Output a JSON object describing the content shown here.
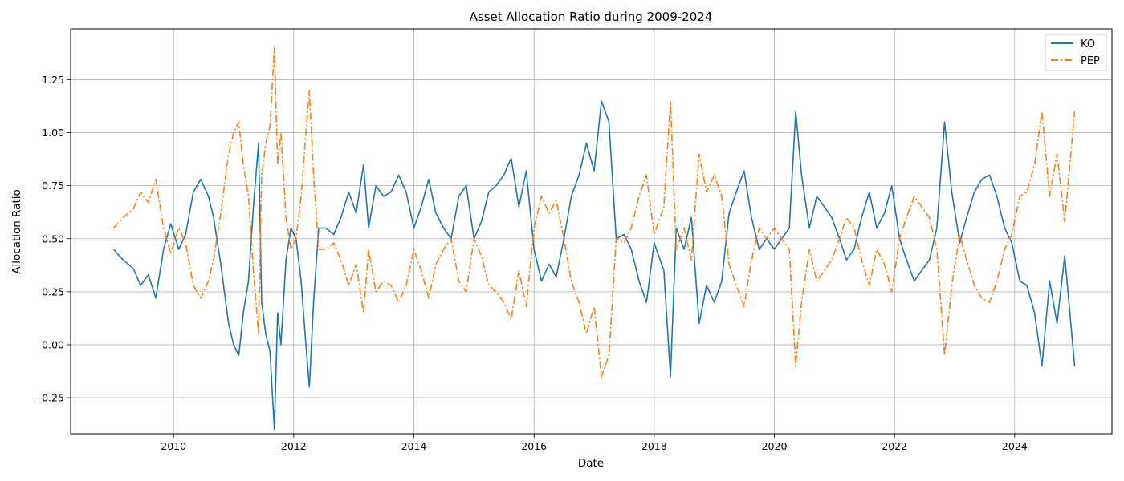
{
  "chart_data": {
    "type": "line",
    "title": "Asset Allocation Ratio during 2009-2024",
    "xlabel": "Date",
    "ylabel": "Allocation Ratio",
    "xlim": [
      "2008-04-15",
      "2025-08-15"
    ],
    "ylim": [
      -0.42,
      1.49
    ],
    "x_ticks": [
      "2010",
      "2012",
      "2014",
      "2016",
      "2018",
      "2020",
      "2022",
      "2024"
    ],
    "y_ticks": [
      "−0.25",
      "0.00",
      "0.25",
      "0.50",
      "0.75",
      "1.00",
      "1.25"
    ],
    "y_tick_values": [
      -0.25,
      0,
      0.25,
      0.5,
      0.75,
      1.0,
      1.25
    ],
    "grid": true,
    "legend_position": "top-right",
    "series": [
      {
        "name": "KO",
        "color": "#1f77b4",
        "style": "solid",
        "x": [
          "2009-01-01",
          "2009-03-01",
          "2009-05-01",
          "2009-06-15",
          "2009-08-01",
          "2009-09-15",
          "2009-11-01",
          "2009-12-15",
          "2010-02-01",
          "2010-03-15",
          "2010-05-01",
          "2010-06-15",
          "2010-08-01",
          "2010-09-01",
          "2010-10-15",
          "2010-12-01",
          "2011-01-01",
          "2011-02-01",
          "2011-03-01",
          "2011-04-01",
          "2011-05-01",
          "2011-06-01",
          "2011-06-20",
          "2011-07-15",
          "2011-08-10",
          "2011-09-05",
          "2011-09-25",
          "2011-10-15",
          "2011-11-15",
          "2011-12-15",
          "2012-01-15",
          "2012-02-15",
          "2012-03-10",
          "2012-04-05",
          "2012-05-01",
          "2012-06-01",
          "2012-07-15",
          "2012-09-01",
          "2012-10-15",
          "2012-12-01",
          "2013-01-15",
          "2013-03-01",
          "2013-04-01",
          "2013-05-15",
          "2013-07-01",
          "2013-08-15",
          "2013-10-01",
          "2013-11-15",
          "2014-01-01",
          "2014-02-15",
          "2014-04-01",
          "2014-05-15",
          "2014-07-01",
          "2014-08-15",
          "2014-10-01",
          "2014-11-15",
          "2015-01-01",
          "2015-02-15",
          "2015-04-01",
          "2015-05-15",
          "2015-07-01",
          "2015-08-15",
          "2015-10-01",
          "2015-11-15",
          "2016-01-01",
          "2016-02-15",
          "2016-04-01",
          "2016-05-15",
          "2016-07-01",
          "2016-08-15",
          "2016-10-01",
          "2016-11-15",
          "2017-01-01",
          "2017-02-15",
          "2017-04-01",
          "2017-05-15",
          "2017-07-01",
          "2017-08-15",
          "2017-10-01",
          "2017-11-15",
          "2018-01-01",
          "2018-03-01",
          "2018-04-10",
          "2018-05-15",
          "2018-07-01",
          "2018-08-15",
          "2018-10-01",
          "2018-11-15",
          "2019-01-01",
          "2019-02-15",
          "2019-04-01",
          "2019-05-15",
          "2019-07-01",
          "2019-08-15",
          "2019-10-01",
          "2019-11-15",
          "2020-01-01",
          "2020-02-15",
          "2020-04-01",
          "2020-05-10",
          "2020-06-15",
          "2020-08-01",
          "2020-09-15",
          "2020-11-01",
          "2020-12-15",
          "2021-02-01",
          "2021-03-15",
          "2021-05-01",
          "2021-06-15",
          "2021-08-01",
          "2021-09-15",
          "2021-11-01",
          "2021-12-15",
          "2022-02-01",
          "2022-03-15",
          "2022-05-01",
          "2022-06-15",
          "2022-08-01",
          "2022-09-15",
          "2022-11-01",
          "2022-12-15",
          "2023-02-01",
          "2023-03-15",
          "2023-05-01",
          "2023-06-15",
          "2023-08-01",
          "2023-09-15",
          "2023-11-01",
          "2023-12-15",
          "2024-02-01",
          "2024-03-15",
          "2024-05-01",
          "2024-06-15",
          "2024-08-01",
          "2024-09-15",
          "2024-11-01",
          "2024-12-31"
        ],
        "y": [
          0.45,
          0.4,
          0.36,
          0.28,
          0.33,
          0.22,
          0.45,
          0.57,
          0.45,
          0.52,
          0.72,
          0.78,
          0.7,
          0.6,
          0.38,
          0.1,
          0.0,
          -0.05,
          0.15,
          0.3,
          0.65,
          0.95,
          0.2,
          0.05,
          -0.03,
          -0.4,
          0.15,
          0.0,
          0.4,
          0.55,
          0.5,
          0.3,
          0.05,
          -0.2,
          0.2,
          0.55,
          0.55,
          0.52,
          0.6,
          0.72,
          0.62,
          0.85,
          0.55,
          0.75,
          0.7,
          0.72,
          0.8,
          0.72,
          0.55,
          0.65,
          0.78,
          0.62,
          0.55,
          0.5,
          0.7,
          0.75,
          0.5,
          0.58,
          0.72,
          0.75,
          0.8,
          0.88,
          0.65,
          0.82,
          0.45,
          0.3,
          0.38,
          0.32,
          0.5,
          0.7,
          0.8,
          0.95,
          0.82,
          1.15,
          1.05,
          0.5,
          0.52,
          0.45,
          0.3,
          0.2,
          0.48,
          0.35,
          -0.15,
          0.55,
          0.45,
          0.6,
          0.1,
          0.28,
          0.2,
          0.3,
          0.62,
          0.72,
          0.82,
          0.6,
          0.45,
          0.5,
          0.45,
          0.5,
          0.55,
          1.1,
          0.8,
          0.55,
          0.7,
          0.65,
          0.6,
          0.5,
          0.4,
          0.45,
          0.6,
          0.72,
          0.55,
          0.62,
          0.75,
          0.5,
          0.4,
          0.3,
          0.35,
          0.4,
          0.55,
          1.05,
          0.72,
          0.48,
          0.6,
          0.72,
          0.78,
          0.8,
          0.7,
          0.55,
          0.48,
          0.3,
          0.28,
          0.15,
          -0.1,
          0.3,
          0.1,
          0.42,
          -0.1
        ]
      },
      {
        "name": "PEP",
        "color": "#ff7f0e",
        "style": "dashdot",
        "x": [
          "2009-01-01",
          "2009-03-01",
          "2009-05-01",
          "2009-06-15",
          "2009-08-01",
          "2009-09-15",
          "2009-11-01",
          "2009-12-15",
          "2010-02-01",
          "2010-03-15",
          "2010-05-01",
          "2010-06-15",
          "2010-08-01",
          "2010-09-01",
          "2010-10-15",
          "2010-12-01",
          "2011-01-01",
          "2011-02-01",
          "2011-03-01",
          "2011-04-01",
          "2011-05-01",
          "2011-06-01",
          "2011-06-20",
          "2011-07-15",
          "2011-08-10",
          "2011-09-05",
          "2011-09-25",
          "2011-10-15",
          "2011-11-15",
          "2011-12-15",
          "2012-01-15",
          "2012-02-15",
          "2012-03-10",
          "2012-04-05",
          "2012-05-01",
          "2012-06-01",
          "2012-07-15",
          "2012-09-01",
          "2012-10-15",
          "2012-12-01",
          "2013-01-15",
          "2013-03-01",
          "2013-04-01",
          "2013-05-15",
          "2013-07-01",
          "2013-08-15",
          "2013-10-01",
          "2013-11-15",
          "2014-01-01",
          "2014-02-15",
          "2014-04-01",
          "2014-05-15",
          "2014-07-01",
          "2014-08-15",
          "2014-10-01",
          "2014-11-15",
          "2015-01-01",
          "2015-02-15",
          "2015-04-01",
          "2015-05-15",
          "2015-07-01",
          "2015-08-15",
          "2015-10-01",
          "2015-11-15",
          "2016-01-01",
          "2016-02-15",
          "2016-04-01",
          "2016-05-15",
          "2016-07-01",
          "2016-08-15",
          "2016-10-01",
          "2016-11-15",
          "2017-01-01",
          "2017-02-15",
          "2017-04-01",
          "2017-05-15",
          "2017-07-01",
          "2017-08-15",
          "2017-10-01",
          "2017-11-15",
          "2018-01-01",
          "2018-03-01",
          "2018-04-10",
          "2018-05-15",
          "2018-07-01",
          "2018-08-15",
          "2018-10-01",
          "2018-11-15",
          "2019-01-01",
          "2019-02-15",
          "2019-04-01",
          "2019-05-15",
          "2019-07-01",
          "2019-08-15",
          "2019-10-01",
          "2019-11-15",
          "2020-01-01",
          "2020-02-15",
          "2020-04-01",
          "2020-05-10",
          "2020-06-15",
          "2020-08-01",
          "2020-09-15",
          "2020-11-01",
          "2020-12-15",
          "2021-02-01",
          "2021-03-15",
          "2021-05-01",
          "2021-06-15",
          "2021-08-01",
          "2021-09-15",
          "2021-11-01",
          "2021-12-15",
          "2022-02-01",
          "2022-03-15",
          "2022-05-01",
          "2022-06-15",
          "2022-08-01",
          "2022-09-15",
          "2022-11-01",
          "2022-12-15",
          "2023-02-01",
          "2023-03-15",
          "2023-05-01",
          "2023-06-15",
          "2023-08-01",
          "2023-09-15",
          "2023-11-01",
          "2023-12-15",
          "2024-02-01",
          "2024-03-15",
          "2024-05-01",
          "2024-06-15",
          "2024-08-01",
          "2024-09-15",
          "2024-11-01",
          "2024-12-31"
        ],
        "y": [
          0.55,
          0.6,
          0.64,
          0.72,
          0.67,
          0.78,
          0.55,
          0.43,
          0.55,
          0.48,
          0.28,
          0.22,
          0.3,
          0.4,
          0.62,
          0.9,
          1.0,
          1.05,
          0.85,
          0.7,
          0.35,
          0.05,
          0.8,
          0.95,
          1.03,
          1.4,
          0.85,
          1.0,
          0.6,
          0.45,
          0.5,
          0.7,
          0.95,
          1.2,
          0.8,
          0.45,
          0.45,
          0.48,
          0.4,
          0.28,
          0.38,
          0.15,
          0.45,
          0.25,
          0.3,
          0.28,
          0.2,
          0.28,
          0.45,
          0.35,
          0.22,
          0.38,
          0.45,
          0.5,
          0.3,
          0.25,
          0.5,
          0.42,
          0.28,
          0.25,
          0.2,
          0.12,
          0.35,
          0.18,
          0.55,
          0.7,
          0.62,
          0.68,
          0.5,
          0.3,
          0.2,
          0.05,
          0.18,
          -0.15,
          -0.05,
          0.5,
          0.48,
          0.55,
          0.7,
          0.8,
          0.52,
          0.65,
          1.15,
          0.45,
          0.55,
          0.4,
          0.9,
          0.72,
          0.8,
          0.7,
          0.38,
          0.28,
          0.18,
          0.4,
          0.55,
          0.5,
          0.55,
          0.5,
          0.45,
          -0.1,
          0.2,
          0.45,
          0.3,
          0.35,
          0.4,
          0.5,
          0.6,
          0.55,
          0.4,
          0.28,
          0.45,
          0.38,
          0.25,
          0.5,
          0.6,
          0.7,
          0.65,
          0.6,
          0.45,
          -0.05,
          0.28,
          0.52,
          0.4,
          0.28,
          0.22,
          0.2,
          0.3,
          0.45,
          0.52,
          0.7,
          0.72,
          0.85,
          1.1,
          0.7,
          0.9,
          0.58,
          1.1
        ]
      }
    ]
  }
}
